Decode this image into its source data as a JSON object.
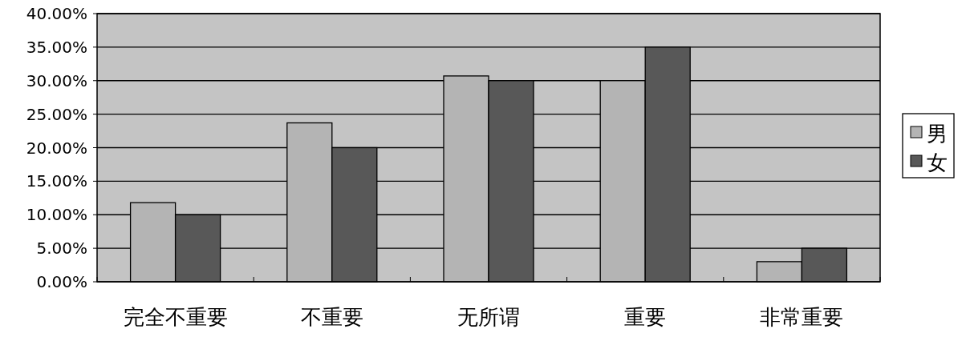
{
  "chart_data": {
    "type": "bar",
    "categories": [
      "完全不重要",
      "不重要",
      "无所谓",
      "重要",
      "非常重要"
    ],
    "series": [
      {
        "name": "男",
        "color": "#b4b4b4",
        "values": [
          11.8,
          23.7,
          30.7,
          30,
          3
        ]
      },
      {
        "name": "女",
        "color": "#585858",
        "values": [
          10,
          20,
          30,
          35,
          5
        ]
      }
    ],
    "ylim": [
      0,
      40
    ],
    "yticks": [
      {
        "value": 0,
        "label": "0.00%"
      },
      {
        "value": 5,
        "label": "5.00%"
      },
      {
        "value": 10,
        "label": "10.00%"
      },
      {
        "value": 15,
        "label": "15.00%"
      },
      {
        "value": 20,
        "label": "20.00%"
      },
      {
        "value": 25,
        "label": "25.00%"
      },
      {
        "value": 30,
        "label": "30.00%"
      },
      {
        "value": 35,
        "label": "35.00%"
      },
      {
        "value": 40,
        "label": "40.00%"
      }
    ],
    "grid": "y",
    "legend": "right"
  }
}
